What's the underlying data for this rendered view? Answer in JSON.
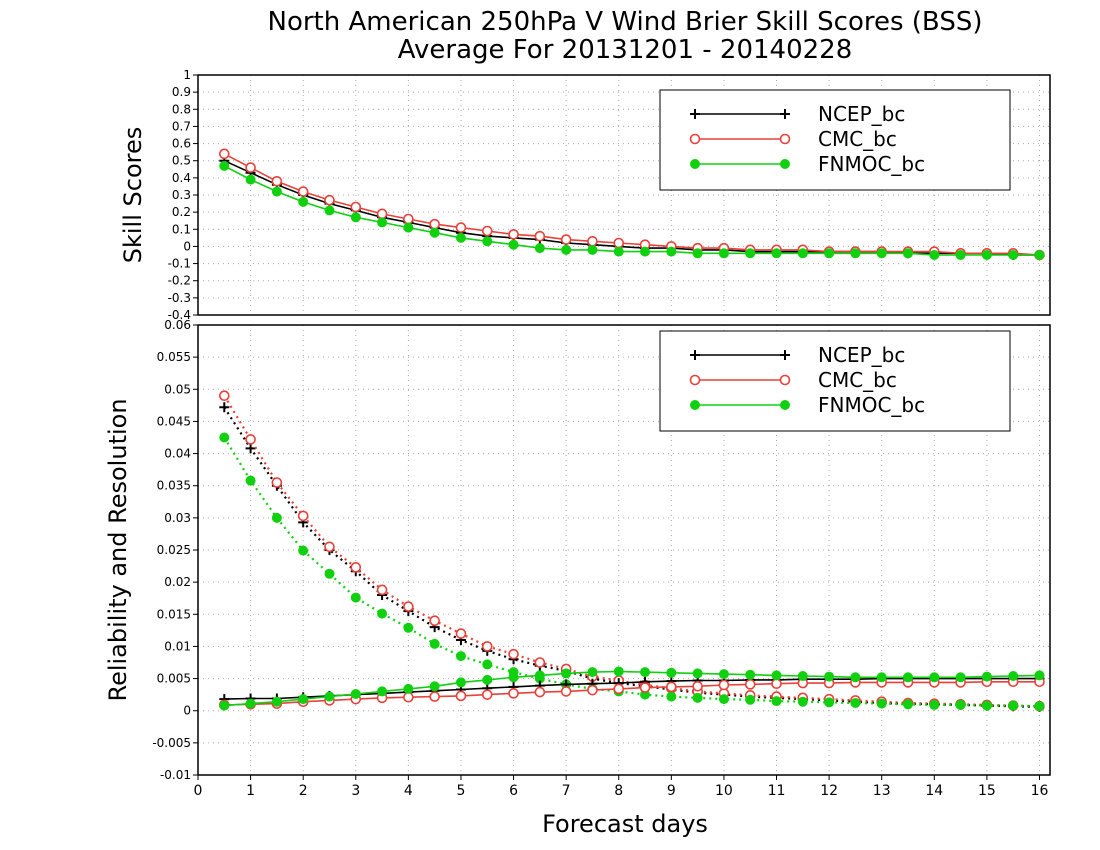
{
  "title": {
    "line1": "North American 250hPa V Wind Brier Skill Scores (BSS)",
    "line2": "Average For 20131201 - 20140228"
  },
  "colors": {
    "NCEP_bc": "#000000",
    "CMC_bc": "#e8413a",
    "FNMOC_bc": "#10d010",
    "grid": "#aaaaaa"
  },
  "chart_data": [
    {
      "type": "line",
      "panel": "top",
      "ylabel": "Skill Scores",
      "xlabel": "",
      "ylim": [
        -0.4,
        1.0
      ],
      "yticks": [
        "-0.4",
        "-0.3",
        "-0.2",
        "-0.1",
        "0",
        "0.1",
        "0.2",
        "0.3",
        "0.4",
        "0.5",
        "0.6",
        "0.7",
        "0.8",
        "0.9",
        "1"
      ],
      "grid": true,
      "legend": {
        "position": "top-right",
        "entries": [
          "NCEP_bc",
          "CMC_bc",
          "FNMOC_bc"
        ]
      },
      "x": [
        0.5,
        1,
        1.5,
        2,
        2.5,
        3,
        3.5,
        4,
        4.5,
        5,
        5.5,
        6,
        6.5,
        7,
        7.5,
        8,
        8.5,
        9,
        9.5,
        10,
        10.5,
        11,
        11.5,
        12,
        12.5,
        13,
        13.5,
        14,
        14.5,
        15,
        15.5,
        16
      ],
      "series": [
        {
          "name": "NCEP_bc",
          "style": "solid-plus",
          "values": [
            0.5,
            0.43,
            0.36,
            0.3,
            0.25,
            0.21,
            0.17,
            0.14,
            0.11,
            0.08,
            0.06,
            0.05,
            0.04,
            0.02,
            0.01,
            0.0,
            -0.01,
            -0.01,
            -0.02,
            -0.02,
            -0.03,
            -0.03,
            -0.03,
            -0.03,
            -0.03,
            -0.03,
            -0.04,
            -0.04,
            -0.04,
            -0.04,
            -0.05,
            -0.05
          ]
        },
        {
          "name": "CMC_bc",
          "style": "solid-open-circle",
          "values": [
            0.54,
            0.46,
            0.38,
            0.32,
            0.27,
            0.23,
            0.19,
            0.16,
            0.13,
            0.11,
            0.09,
            0.07,
            0.06,
            0.04,
            0.03,
            0.02,
            0.01,
            0.0,
            -0.01,
            -0.01,
            -0.02,
            -0.02,
            -0.02,
            -0.03,
            -0.03,
            -0.03,
            -0.03,
            -0.03,
            -0.04,
            -0.04,
            -0.04,
            -0.05
          ]
        },
        {
          "name": "FNMOC_bc",
          "style": "solid-filled-circle",
          "values": [
            0.47,
            0.39,
            0.32,
            0.26,
            0.21,
            0.17,
            0.14,
            0.11,
            0.08,
            0.05,
            0.03,
            0.01,
            -0.01,
            -0.02,
            -0.02,
            -0.03,
            -0.03,
            -0.03,
            -0.04,
            -0.04,
            -0.04,
            -0.04,
            -0.04,
            -0.04,
            -0.04,
            -0.04,
            -0.04,
            -0.05,
            -0.05,
            -0.05,
            -0.05,
            -0.05
          ]
        }
      ]
    },
    {
      "type": "line",
      "panel": "bottom",
      "ylabel": "Reliability and Resolution",
      "xlabel": "Forecast days",
      "ylim": [
        -0.01,
        0.06
      ],
      "xlim": [
        0,
        16.2
      ],
      "yticks": [
        "-0.01",
        "-0.005",
        "0",
        "0.005",
        "0.01",
        "0.015",
        "0.02",
        "0.025",
        "0.03",
        "0.035",
        "0.04",
        "0.045",
        "0.05",
        "0.055",
        "0.06"
      ],
      "xticks": [
        "0",
        "1",
        "2",
        "3",
        "4",
        "5",
        "6",
        "7",
        "8",
        "9",
        "10",
        "11",
        "12",
        "13",
        "14",
        "15",
        "16"
      ],
      "grid": true,
      "legend": {
        "position": "top-right",
        "entries": [
          "NCEP_bc",
          "CMC_bc",
          "FNMOC_bc"
        ]
      },
      "x": [
        0.5,
        1,
        1.5,
        2,
        2.5,
        3,
        3.5,
        4,
        4.5,
        5,
        5.5,
        6,
        6.5,
        7,
        7.5,
        8,
        8.5,
        9,
        9.5,
        10,
        10.5,
        11,
        11.5,
        12,
        12.5,
        13,
        13.5,
        14,
        14.5,
        15,
        15.5,
        16
      ],
      "series": [
        {
          "name": "NCEP_bc",
          "metric": "resolution",
          "line": "dotted",
          "values": [
            0.0472,
            0.0408,
            0.035,
            0.0293,
            0.025,
            0.0217,
            0.018,
            0.0155,
            0.013,
            0.011,
            0.0093,
            0.008,
            0.007,
            0.0062,
            0.005,
            0.0043,
            0.0038,
            0.0033,
            0.0028,
            0.0025,
            0.0022,
            0.002,
            0.0018,
            0.0016,
            0.0014,
            0.0012,
            0.0011,
            0.001,
            0.0009,
            0.0008,
            0.0007,
            0.0006
          ]
        },
        {
          "name": "CMC_bc",
          "metric": "resolution",
          "line": "dotted",
          "values": [
            0.049,
            0.0422,
            0.0355,
            0.0303,
            0.0255,
            0.0223,
            0.0188,
            0.0162,
            0.014,
            0.012,
            0.01,
            0.0088,
            0.0075,
            0.0065,
            0.0053,
            0.0047,
            0.004,
            0.0035,
            0.003,
            0.0027,
            0.0024,
            0.0022,
            0.002,
            0.0018,
            0.0016,
            0.0014,
            0.0012,
            0.0011,
            0.001,
            0.0009,
            0.0008,
            0.0007
          ]
        },
        {
          "name": "FNMOC_bc",
          "metric": "resolution",
          "line": "dotted",
          "values": [
            0.0425,
            0.0358,
            0.03,
            0.0249,
            0.0213,
            0.0176,
            0.0151,
            0.0129,
            0.0104,
            0.0085,
            0.0072,
            0.006,
            0.005,
            0.0041,
            0.0034,
            0.003,
            0.0025,
            0.0022,
            0.002,
            0.0018,
            0.0017,
            0.0015,
            0.0014,
            0.0013,
            0.0012,
            0.0011,
            0.001,
            0.0009,
            0.0009,
            0.0008,
            0.0008,
            0.0007
          ]
        },
        {
          "name": "NCEP_bc",
          "metric": "reliability",
          "line": "solid",
          "values": [
            0.0018,
            0.0019,
            0.0019,
            0.0021,
            0.0023,
            0.0025,
            0.0027,
            0.0029,
            0.0031,
            0.0033,
            0.0035,
            0.0037,
            0.0039,
            0.0041,
            0.0042,
            0.0043,
            0.0045,
            0.0046,
            0.0047,
            0.0047,
            0.0048,
            0.0048,
            0.0049,
            0.0049,
            0.0049,
            0.005,
            0.005,
            0.005,
            0.005,
            0.005,
            0.005,
            0.005
          ]
        },
        {
          "name": "CMC_bc",
          "metric": "reliability",
          "line": "solid",
          "values": [
            0.0009,
            0.001,
            0.0011,
            0.0014,
            0.0016,
            0.0018,
            0.002,
            0.0021,
            0.0022,
            0.0023,
            0.0025,
            0.0027,
            0.0029,
            0.003,
            0.0032,
            0.0034,
            0.0036,
            0.0037,
            0.0038,
            0.004,
            0.0041,
            0.0042,
            0.0043,
            0.0043,
            0.0044,
            0.0044,
            0.0044,
            0.0044,
            0.0044,
            0.0045,
            0.0045,
            0.0045
          ]
        },
        {
          "name": "FNMOC_bc",
          "metric": "reliability",
          "line": "solid",
          "values": [
            0.0008,
            0.0011,
            0.0014,
            0.0018,
            0.0022,
            0.0026,
            0.003,
            0.0034,
            0.0038,
            0.0044,
            0.0048,
            0.0052,
            0.0055,
            0.0058,
            0.006,
            0.0061,
            0.006,
            0.0059,
            0.0058,
            0.0057,
            0.0056,
            0.0055,
            0.0054,
            0.0053,
            0.0052,
            0.0052,
            0.0052,
            0.0052,
            0.0052,
            0.0053,
            0.0054,
            0.0055
          ]
        }
      ]
    }
  ]
}
